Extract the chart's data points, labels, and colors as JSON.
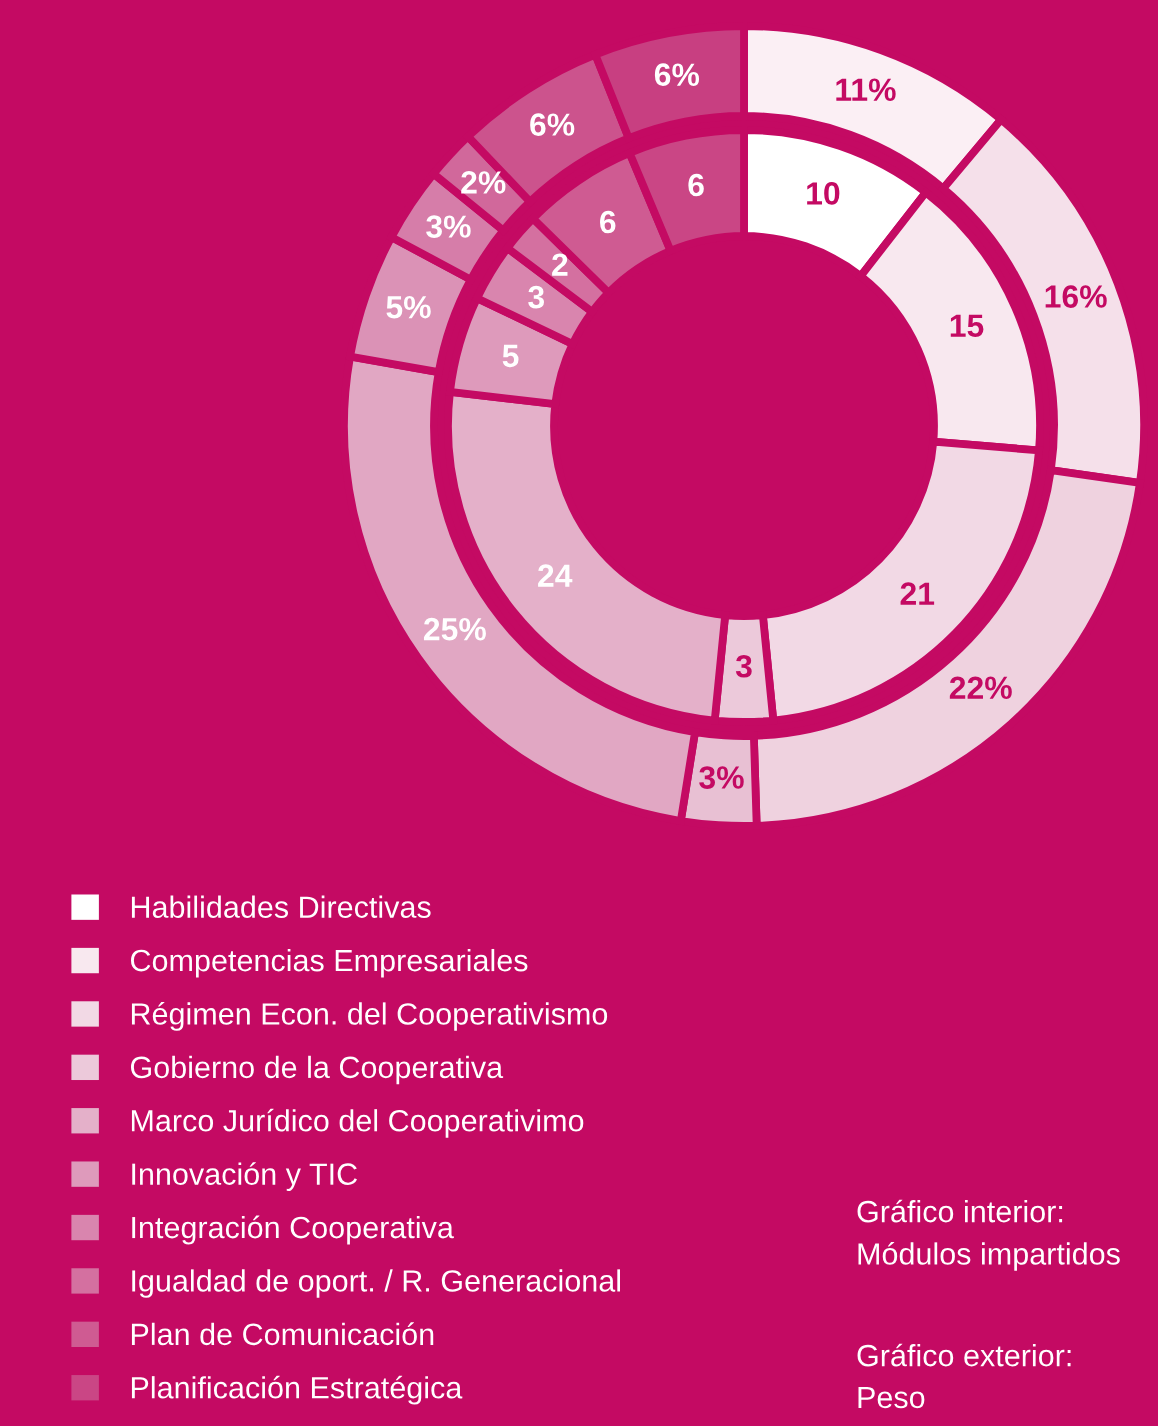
{
  "chart_data": {
    "type": "donut",
    "categories": [
      "Habilidades Directivas",
      "Competencias Empresariales",
      "Régimen Econ. del Cooperativismo",
      "Gobierno de la Cooperativa",
      "Marco Jurídico del Cooperativimo",
      "Innovación y TIC",
      "Integración Cooperativa",
      "Igualdad de oport. / R. Generacional",
      "Plan de Comunicación",
      "Planificación Estratégica"
    ],
    "series": [
      {
        "values": [
          10,
          15,
          21,
          3,
          24,
          5,
          3,
          2,
          6,
          6
        ],
        "colors": [
          "#ffffff",
          "#f8e8ef",
          "#f2d9e5",
          "#ecc9da",
          "#e4b0c9",
          "#de9abb",
          "#d985ae",
          "#d470a0",
          "#cf5b92",
          "#ca4685"
        ]
      },
      {
        "values": [
          11,
          16,
          22,
          3,
          25,
          5,
          3,
          2,
          6,
          6
        ],
        "colors": [
          "#fbeff4",
          "#f5e0ea",
          "#efd2df",
          "#e8c0d3",
          "#e1a7c3",
          "#db92b6",
          "#d67da9",
          "#d1689b",
          "#cc538d",
          "#c83f81"
        ],
        "value_labels": [
          "11%",
          "16%",
          "22%",
          "3%",
          "25%",
          "5%",
          "3%",
          "2%",
          "6%",
          "6%"
        ]
      }
    ],
    "data_labels": true,
    "legend": "bottom left",
    "annotations": [
      "Gráfico interior:\nMódulos impartidos",
      "Gráfico exterior:\nPeso"
    ]
  }
}
